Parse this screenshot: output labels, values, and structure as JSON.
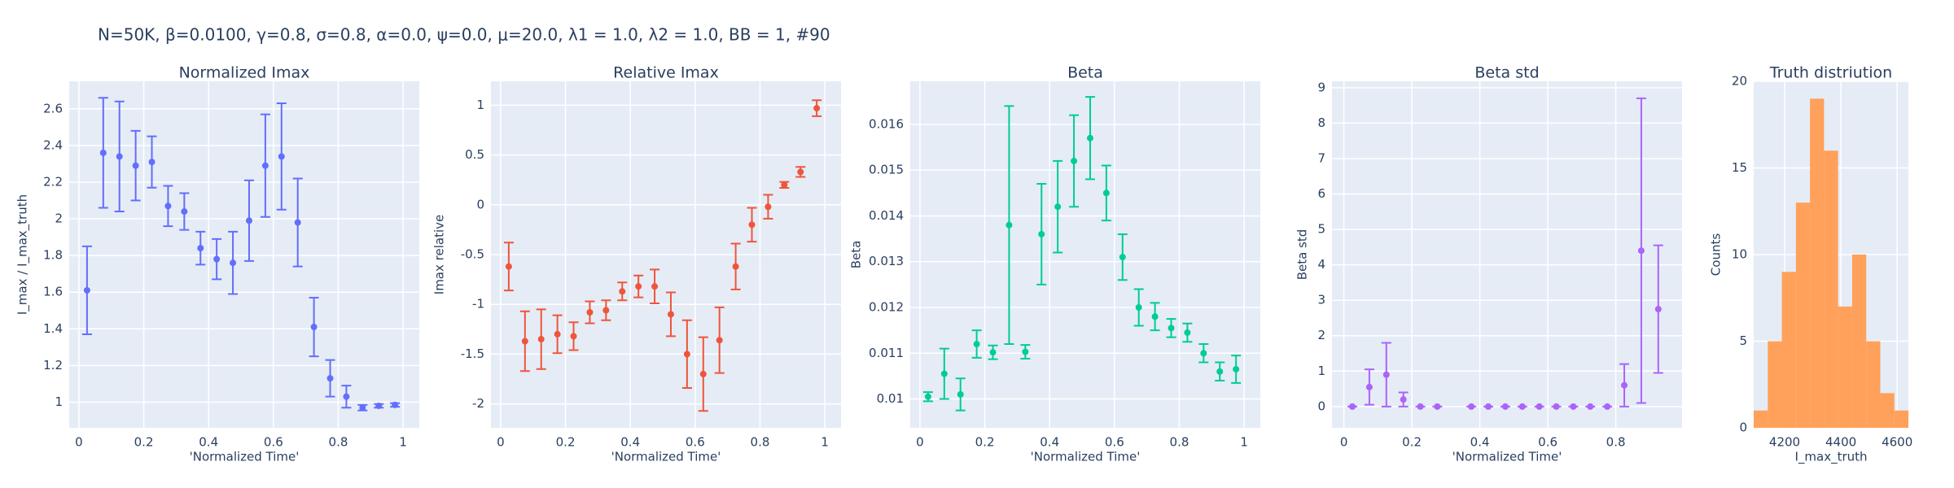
{
  "title": "N=50K, β=0.0100, γ=0.8, σ=0.8,  α=0.0, ψ=0.0, μ=20.0, λ1 = 1.0, λ2 = 1.0, BB = 1, #90",
  "chart_data": [
    {
      "type": "scatter",
      "title": "Normalized Imax",
      "xlabel": "'Normalized Time'",
      "ylabel": "I_max / I_max_truth",
      "color": "#636efa",
      "x": [
        0.025,
        0.075,
        0.125,
        0.175,
        0.225,
        0.275,
        0.325,
        0.375,
        0.425,
        0.475,
        0.525,
        0.575,
        0.625,
        0.675,
        0.725,
        0.775,
        0.825,
        0.875,
        0.925,
        0.975
      ],
      "values": [
        1.61,
        2.36,
        2.34,
        2.29,
        2.31,
        2.07,
        2.04,
        1.84,
        1.78,
        1.76,
        1.99,
        2.29,
        2.34,
        1.98,
        1.41,
        1.13,
        1.03,
        0.97,
        0.98,
        0.985
      ],
      "errors": [
        0.24,
        0.3,
        0.3,
        0.19,
        0.14,
        0.11,
        0.1,
        0.09,
        0.11,
        0.17,
        0.22,
        0.28,
        0.29,
        0.24,
        0.16,
        0.1,
        0.06,
        0.015,
        0.01,
        0.01
      ],
      "xlim": [
        -0.03,
        1.05
      ],
      "xticks": [
        0,
        0.2,
        0.4,
        0.6,
        0.8,
        1
      ],
      "ylim": [
        0.86,
        2.75
      ],
      "yticks": [
        1,
        1.2,
        1.4,
        1.6,
        1.8,
        2,
        2.2,
        2.4,
        2.6
      ],
      "grid": true
    },
    {
      "type": "scatter",
      "title": "Relative Imax",
      "xlabel": "'Normalized Time'",
      "ylabel": "Imax relative",
      "color": "#ef553b",
      "x": [
        0.025,
        0.075,
        0.125,
        0.175,
        0.225,
        0.275,
        0.325,
        0.375,
        0.425,
        0.475,
        0.525,
        0.575,
        0.625,
        0.675,
        0.725,
        0.775,
        0.825,
        0.875,
        0.925,
        0.975
      ],
      "values": [
        -0.62,
        -1.37,
        -1.35,
        -1.3,
        -1.32,
        -1.08,
        -1.06,
        -0.87,
        -0.82,
        -0.82,
        -1.1,
        -1.5,
        -1.7,
        -1.36,
        -0.62,
        -0.2,
        -0.02,
        0.2,
        0.33,
        0.97
      ],
      "errors": [
        0.24,
        0.3,
        0.3,
        0.19,
        0.14,
        0.11,
        0.1,
        0.09,
        0.11,
        0.17,
        0.22,
        0.34,
        0.37,
        0.33,
        0.23,
        0.17,
        0.12,
        0.03,
        0.05,
        0.08
      ],
      "xlim": [
        -0.03,
        1.05
      ],
      "xticks": [
        0,
        0.2,
        0.4,
        0.6,
        0.8,
        1
      ],
      "ylim": [
        -2.24,
        1.24
      ],
      "yticks": [
        -2,
        -1.5,
        -1,
        -0.5,
        0,
        0.5,
        1
      ],
      "grid": true
    },
    {
      "type": "scatter",
      "title": "Beta",
      "xlabel": "'Normalized Time'",
      "ylabel": "Beta",
      "color": "#00cc96",
      "x": [
        0.025,
        0.075,
        0.125,
        0.175,
        0.225,
        0.275,
        0.325,
        0.375,
        0.425,
        0.475,
        0.525,
        0.575,
        0.625,
        0.675,
        0.725,
        0.775,
        0.825,
        0.875,
        0.925,
        0.975
      ],
      "values": [
        0.01005,
        0.01055,
        0.0101,
        0.0112,
        0.01102,
        0.0138,
        0.01103,
        0.0136,
        0.0142,
        0.0152,
        0.0157,
        0.0145,
        0.0131,
        0.012,
        0.0118,
        0.01155,
        0.01145,
        0.011,
        0.0106,
        0.01065
      ],
      "errors": [
        0.0001,
        0.00055,
        0.00035,
        0.0003,
        0.00015,
        0.0026,
        0.00015,
        0.0011,
        0.001,
        0.001,
        0.0009,
        0.0006,
        0.0005,
        0.0004,
        0.0003,
        0.0002,
        0.0002,
        0.0002,
        0.0002,
        0.0003
      ],
      "xlim": [
        -0.03,
        1.05
      ],
      "xticks": [
        0,
        0.2,
        0.4,
        0.6,
        0.8,
        1
      ],
      "ylim": [
        0.00937,
        0.01694
      ],
      "yticks": [
        0.01,
        0.011,
        0.012,
        0.013,
        0.014,
        0.015,
        0.016
      ],
      "grid": true
    },
    {
      "type": "scatter",
      "title": "Beta std",
      "xlabel": "'Normalized Time'",
      "ylabel": "Beta std",
      "color": "#ab63fa",
      "x": [
        0.025,
        0.075,
        0.125,
        0.175,
        0.225,
        0.275,
        0.325,
        0.375,
        0.425,
        0.475,
        0.525,
        0.575,
        0.625,
        0.675,
        0.725,
        0.775,
        0.825,
        0.875,
        0.925,
        0.975
      ],
      "values": [
        0,
        0.55,
        0.9,
        0.2,
        0,
        0,
        null,
        0,
        0,
        0,
        0,
        0,
        0,
        0,
        0,
        0,
        0.6,
        4.4,
        2.75,
        null
      ],
      "errors": [
        0,
        0.5,
        0.9,
        0.2,
        0,
        0,
        null,
        0,
        0,
        0,
        0,
        0,
        0,
        0,
        0,
        0,
        0.6,
        4.3,
        1.8,
        null
      ],
      "xlim": [
        -0.035,
        0.995
      ],
      "xticks": [
        0,
        0.2,
        0.4,
        0.6,
        0.8
      ],
      "ylim": [
        -0.6,
        9.18
      ],
      "yticks": [
        0,
        1,
        2,
        3,
        4,
        5,
        6,
        7,
        8,
        9
      ],
      "grid": true
    },
    {
      "type": "histogram",
      "title": "Truth distriution",
      "xlabel": "I_max_truth",
      "ylabel": "Counts",
      "color": "#ffa15a",
      "bins": [
        4090,
        4140,
        4190,
        4240,
        4290,
        4340,
        4390,
        4440,
        4490,
        4540,
        4590,
        4640
      ],
      "values": [
        1,
        5,
        9,
        13,
        19,
        16,
        7,
        10,
        5,
        2,
        1
      ],
      "xlim": [
        4090,
        4640
      ],
      "xticks": [
        4200,
        4400,
        4600
      ],
      "ylim": [
        0,
        20
      ],
      "yticks": [
        0,
        5,
        10,
        15,
        20
      ],
      "grid": true
    }
  ]
}
